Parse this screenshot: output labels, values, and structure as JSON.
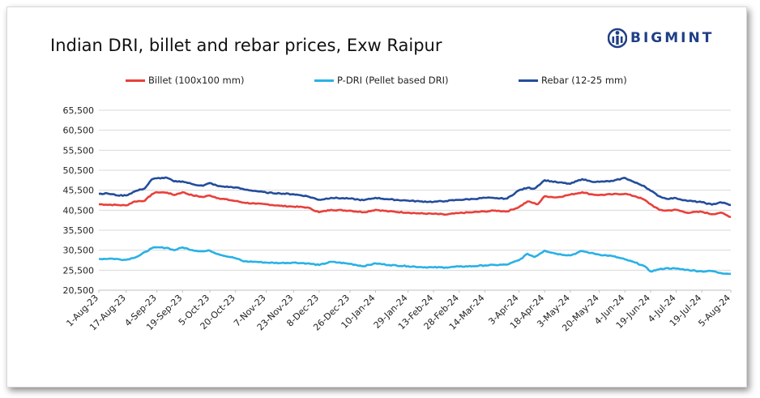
{
  "chart_data": {
    "type": "line",
    "title": "Indian DRI, billet and rebar prices, Exw Raipur",
    "xlabel": "",
    "ylabel": "",
    "ylim": [
      20500,
      65500
    ],
    "ytick_step": 5000,
    "yticks": [
      "65,500",
      "60,500",
      "55,500",
      "50,500",
      "45,500",
      "40,500",
      "35,500",
      "30,500",
      "25,500",
      "20,500"
    ],
    "grid": true,
    "legend_placement": "top",
    "x_start": "2023-08-01",
    "x_end": "2024-08-05",
    "xtick_labels": [
      {
        "date": "2023-08-01",
        "label": "1-Aug-23"
      },
      {
        "date": "2023-08-17",
        "label": "17-Aug-23"
      },
      {
        "date": "2023-09-04",
        "label": "4-Sep-23"
      },
      {
        "date": "2023-09-19",
        "label": "19-Sep-23"
      },
      {
        "date": "2023-10-05",
        "label": "5-Oct-23"
      },
      {
        "date": "2023-10-20",
        "label": "20-Oct-23"
      },
      {
        "date": "2023-11-07",
        "label": "7-Nov-23"
      },
      {
        "date": "2023-11-23",
        "label": "23-Nov-23"
      },
      {
        "date": "2023-12-08",
        "label": "8-Dec-23"
      },
      {
        "date": "2023-12-26",
        "label": "26-Dec-23"
      },
      {
        "date": "2024-01-10",
        "label": "10-Jan-24"
      },
      {
        "date": "2024-01-29",
        "label": "29-Jan-24"
      },
      {
        "date": "2024-02-13",
        "label": "13-Feb-24"
      },
      {
        "date": "2024-02-28",
        "label": "28-Feb-24"
      },
      {
        "date": "2024-03-14",
        "label": "14-Mar-24"
      },
      {
        "date": "2024-04-03",
        "label": "3-Apr-24"
      },
      {
        "date": "2024-04-18",
        "label": "18-Apr-24"
      },
      {
        "date": "2024-05-03",
        "label": "3-May-24"
      },
      {
        "date": "2024-05-20",
        "label": "20-May-24"
      },
      {
        "date": "2024-06-04",
        "label": "4-Jun-24"
      },
      {
        "date": "2024-06-19",
        "label": "19-Jun-24"
      },
      {
        "date": "2024-07-04",
        "label": "4-Jul-24"
      },
      {
        "date": "2024-07-19",
        "label": "19-Jul-24"
      },
      {
        "date": "2024-08-05",
        "label": "5-Aug-24"
      }
    ],
    "series": [
      {
        "name": "Billet (100x100 mm)",
        "color": "#e8403a",
        "points": [
          [
            "2023-08-01",
            42000
          ],
          [
            "2023-08-05",
            41900
          ],
          [
            "2023-08-12",
            41800
          ],
          [
            "2023-08-17",
            41700
          ],
          [
            "2023-08-22",
            42700
          ],
          [
            "2023-08-28",
            42900
          ],
          [
            "2023-09-01",
            44500
          ],
          [
            "2023-09-04",
            45000
          ],
          [
            "2023-09-10",
            44900
          ],
          [
            "2023-09-14",
            44300
          ],
          [
            "2023-09-19",
            45000
          ],
          [
            "2023-09-25",
            44200
          ],
          [
            "2023-10-01",
            43800
          ],
          [
            "2023-10-05",
            44200
          ],
          [
            "2023-10-10",
            43500
          ],
          [
            "2023-10-20",
            42800
          ],
          [
            "2023-10-25",
            42400
          ],
          [
            "2023-11-01",
            42100
          ],
          [
            "2023-11-07",
            42000
          ],
          [
            "2023-11-15",
            41600
          ],
          [
            "2023-11-23",
            41400
          ],
          [
            "2023-12-01",
            41200
          ],
          [
            "2023-12-08",
            40000
          ],
          [
            "2023-12-15",
            40600
          ],
          [
            "2023-12-26",
            40400
          ],
          [
            "2024-01-03",
            40000
          ],
          [
            "2024-01-10",
            40600
          ],
          [
            "2024-01-18",
            40200
          ],
          [
            "2024-01-29",
            39900
          ],
          [
            "2024-02-05",
            39700
          ],
          [
            "2024-02-13",
            39600
          ],
          [
            "2024-02-20",
            39400
          ],
          [
            "2024-02-28",
            39800
          ],
          [
            "2024-03-07",
            40000
          ],
          [
            "2024-03-14",
            40200
          ],
          [
            "2024-03-20",
            40400
          ],
          [
            "2024-03-27",
            40200
          ],
          [
            "2024-04-03",
            41300
          ],
          [
            "2024-04-08",
            42700
          ],
          [
            "2024-04-14",
            42000
          ],
          [
            "2024-04-18",
            44000
          ],
          [
            "2024-04-25",
            43700
          ],
          [
            "2024-05-03",
            44400
          ],
          [
            "2024-05-10",
            45000
          ],
          [
            "2024-05-15",
            44500
          ],
          [
            "2024-05-20",
            44300
          ],
          [
            "2024-05-28",
            44500
          ],
          [
            "2024-06-04",
            44600
          ],
          [
            "2024-06-10",
            44000
          ],
          [
            "2024-06-15",
            43200
          ],
          [
            "2024-06-19",
            42000
          ],
          [
            "2024-06-24",
            40600
          ],
          [
            "2024-06-28",
            40400
          ],
          [
            "2024-07-04",
            40600
          ],
          [
            "2024-07-10",
            39900
          ],
          [
            "2024-07-19",
            40100
          ],
          [
            "2024-07-25",
            39500
          ],
          [
            "2024-07-30",
            39900
          ],
          [
            "2024-08-05",
            38800
          ]
        ]
      },
      {
        "name": "P-DRI (Pellet based DRI)",
        "color": "#29b1e6",
        "points": [
          [
            "2023-08-01",
            28300
          ],
          [
            "2023-08-08",
            28400
          ],
          [
            "2023-08-17",
            28100
          ],
          [
            "2023-08-24",
            29000
          ],
          [
            "2023-09-01",
            31000
          ],
          [
            "2023-09-04",
            31200
          ],
          [
            "2023-09-10",
            31100
          ],
          [
            "2023-09-14",
            30500
          ],
          [
            "2023-09-19",
            31200
          ],
          [
            "2023-09-25",
            30500
          ],
          [
            "2023-10-01",
            30200
          ],
          [
            "2023-10-05",
            30400
          ],
          [
            "2023-10-10",
            29500
          ],
          [
            "2023-10-20",
            28500
          ],
          [
            "2023-10-25",
            27700
          ],
          [
            "2023-11-01",
            27600
          ],
          [
            "2023-11-07",
            27400
          ],
          [
            "2023-11-15",
            27300
          ],
          [
            "2023-11-23",
            27400
          ],
          [
            "2023-12-01",
            27200
          ],
          [
            "2023-12-08",
            26800
          ],
          [
            "2023-12-15",
            27600
          ],
          [
            "2023-12-26",
            27100
          ],
          [
            "2024-01-03",
            26500
          ],
          [
            "2024-01-10",
            27200
          ],
          [
            "2024-01-18",
            26800
          ],
          [
            "2024-01-29",
            26500
          ],
          [
            "2024-02-05",
            26300
          ],
          [
            "2024-02-13",
            26200
          ],
          [
            "2024-02-20",
            26200
          ],
          [
            "2024-02-28",
            26400
          ],
          [
            "2024-03-07",
            26500
          ],
          [
            "2024-03-14",
            26700
          ],
          [
            "2024-03-20",
            26800
          ],
          [
            "2024-03-27",
            26900
          ],
          [
            "2024-04-03",
            28000
          ],
          [
            "2024-04-08",
            29600
          ],
          [
            "2024-04-12",
            28800
          ],
          [
            "2024-04-18",
            30400
          ],
          [
            "2024-04-25",
            29600
          ],
          [
            "2024-05-03",
            29200
          ],
          [
            "2024-05-10",
            30300
          ],
          [
            "2024-05-15",
            29800
          ],
          [
            "2024-05-20",
            29400
          ],
          [
            "2024-05-28",
            29000
          ],
          [
            "2024-06-04",
            28200
          ],
          [
            "2024-06-10",
            27400
          ],
          [
            "2024-06-15",
            26600
          ],
          [
            "2024-06-19",
            25200
          ],
          [
            "2024-06-24",
            25700
          ],
          [
            "2024-06-28",
            26000
          ],
          [
            "2024-07-04",
            25900
          ],
          [
            "2024-07-10",
            25600
          ],
          [
            "2024-07-19",
            25200
          ],
          [
            "2024-07-25",
            25300
          ],
          [
            "2024-07-30",
            24800
          ],
          [
            "2024-08-05",
            24600
          ]
        ]
      },
      {
        "name": "Rebar (12-25 mm)",
        "color": "#244d9b",
        "points": [
          [
            "2023-08-01",
            44600
          ],
          [
            "2023-08-06",
            44700
          ],
          [
            "2023-08-12",
            44200
          ],
          [
            "2023-08-17",
            44200
          ],
          [
            "2023-08-22",
            45200
          ],
          [
            "2023-08-28",
            46000
          ],
          [
            "2023-09-01",
            48200
          ],
          [
            "2023-09-04",
            48500
          ],
          [
            "2023-09-10",
            48600
          ],
          [
            "2023-09-14",
            47700
          ],
          [
            "2023-09-19",
            47700
          ],
          [
            "2023-09-25",
            47000
          ],
          [
            "2023-10-01",
            46600
          ],
          [
            "2023-10-05",
            47300
          ],
          [
            "2023-10-10",
            46500
          ],
          [
            "2023-10-20",
            46200
          ],
          [
            "2023-10-25",
            45700
          ],
          [
            "2023-11-01",
            45300
          ],
          [
            "2023-11-07",
            44900
          ],
          [
            "2023-11-15",
            44700
          ],
          [
            "2023-11-23",
            44500
          ],
          [
            "2023-12-01",
            44000
          ],
          [
            "2023-12-08",
            43100
          ],
          [
            "2023-12-15",
            43600
          ],
          [
            "2023-12-26",
            43400
          ],
          [
            "2024-01-03",
            43000
          ],
          [
            "2024-01-10",
            43600
          ],
          [
            "2024-01-18",
            43200
          ],
          [
            "2024-01-29",
            42900
          ],
          [
            "2024-02-05",
            42700
          ],
          [
            "2024-02-13",
            42600
          ],
          [
            "2024-02-20",
            42800
          ],
          [
            "2024-02-28",
            43100
          ],
          [
            "2024-03-07",
            43300
          ],
          [
            "2024-03-14",
            43600
          ],
          [
            "2024-03-20",
            43500
          ],
          [
            "2024-03-27",
            43400
          ],
          [
            "2024-04-03",
            45500
          ],
          [
            "2024-04-08",
            46100
          ],
          [
            "2024-04-12",
            45900
          ],
          [
            "2024-04-18",
            48000
          ],
          [
            "2024-04-25",
            47500
          ],
          [
            "2024-05-03",
            47100
          ],
          [
            "2024-05-10",
            48300
          ],
          [
            "2024-05-15",
            47700
          ],
          [
            "2024-05-20",
            47600
          ],
          [
            "2024-05-28",
            47800
          ],
          [
            "2024-06-04",
            48600
          ],
          [
            "2024-06-10",
            47400
          ],
          [
            "2024-06-15",
            46600
          ],
          [
            "2024-06-19",
            45400
          ],
          [
            "2024-06-24",
            44000
          ],
          [
            "2024-06-28",
            43400
          ],
          [
            "2024-07-04",
            43500
          ],
          [
            "2024-07-10",
            42900
          ],
          [
            "2024-07-19",
            42500
          ],
          [
            "2024-07-25",
            41900
          ],
          [
            "2024-07-30",
            42500
          ],
          [
            "2024-08-05",
            41800
          ]
        ]
      }
    ]
  },
  "brand": {
    "name": "BIGMINT",
    "color": "#1f3f86"
  }
}
